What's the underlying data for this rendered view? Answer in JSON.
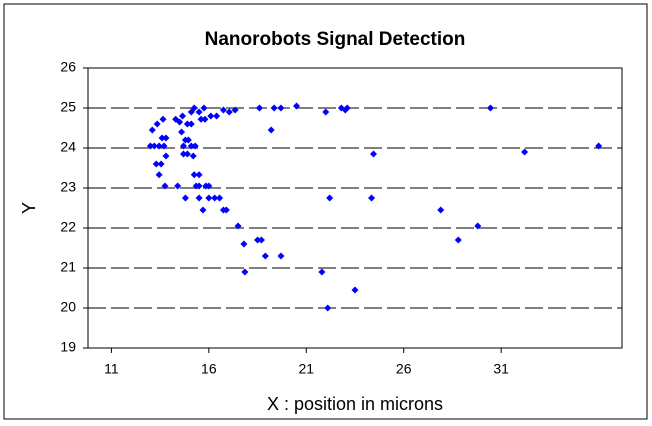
{
  "chart_data": {
    "type": "scatter",
    "title": "Nanorobots Signal Detection",
    "x_label": "X : position in microns",
    "y_label": "Y",
    "color": "#0000ff",
    "grid": true,
    "xlim": [
      9.8,
      37.2
    ],
    "xticks": [
      11,
      16,
      21,
      26,
      31
    ],
    "ylim": [
      19,
      26
    ],
    "yticks": [
      19,
      20,
      21,
      22,
      23,
      24,
      25,
      26
    ],
    "x": [
      13.0,
      13.2,
      13.1,
      13.35,
      13.45,
      13.3,
      13.55,
      13.45,
      13.65,
      13.6,
      13.8,
      13.7,
      13.8,
      13.75,
      14.3,
      14.5,
      14.65,
      14.4,
      14.6,
      14.7,
      14.7,
      14.9,
      14.8,
      14.95,
      14.9,
      15.1,
      15.25,
      15.1,
      15.1,
      15.3,
      15.2,
      15.25,
      14.8,
      15.5,
      15.35,
      15.5,
      15.5,
      15.6,
      15.8,
      15.75,
      15.5,
      15.7,
      15.85,
      16.0,
      16.0,
      16.3,
      16.55,
      16.1,
      16.4,
      16.75,
      17.05,
      17.35,
      16.75,
      16.9,
      17.5,
      17.8,
      17.85,
      18.5,
      18.7,
      18.9,
      19.7,
      18.6,
      19.2,
      19.35,
      19.7,
      20.5,
      21.8,
      22.0,
      22.2,
      22.1,
      22.8,
      23.0,
      23.1,
      23.5,
      24.35,
      24.45,
      27.9,
      28.8,
      29.8,
      30.45,
      32.2,
      36.0
    ],
    "values": [
      24.05,
      24.05,
      24.45,
      24.6,
      24.05,
      23.6,
      23.6,
      23.33,
      24.72,
      24.25,
      24.25,
      24.05,
      23.8,
      23.05,
      24.72,
      24.65,
      24.8,
      23.05,
      24.4,
      24.05,
      23.85,
      23.85,
      24.2,
      24.2,
      24.6,
      24.9,
      25.0,
      24.6,
      24.05,
      24.05,
      23.8,
      23.33,
      22.75,
      23.33,
      23.05,
      23.05,
      24.9,
      24.72,
      24.72,
      25.0,
      22.75,
      22.45,
      23.05,
      23.05,
      22.75,
      22.75,
      22.75,
      24.8,
      24.8,
      24.95,
      24.9,
      24.95,
      22.45,
      22.45,
      22.05,
      21.6,
      20.9,
      21.7,
      21.7,
      21.3,
      21.3,
      25.0,
      24.45,
      25.0,
      25.0,
      25.05,
      20.9,
      24.9,
      22.75,
      20.0,
      25.0,
      24.95,
      25.0,
      20.45,
      22.75,
      23.85,
      22.45,
      21.7,
      22.05,
      25.0,
      23.9,
      24.05
    ]
  }
}
